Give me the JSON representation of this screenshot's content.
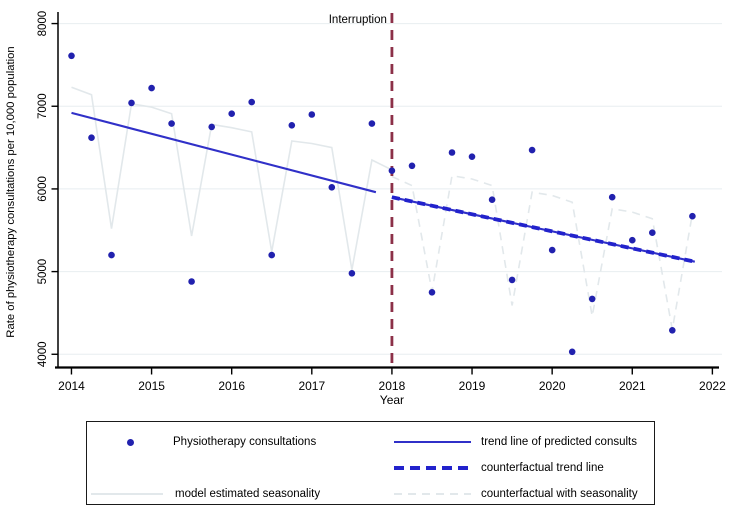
{
  "figure": {
    "ylabel": "Rate of physiotherapy consultations per 10,000 population",
    "xlabel": "Year",
    "interruption_label": "Interruption"
  },
  "colors": {
    "dot_blue": "#2121ae",
    "trend_blue": "#3030c8",
    "counterfactual_blue": "#2222cc",
    "seasonality_gray": "#e2e8eb",
    "interruption_maroon": "#8c3048",
    "gridline": "#e8eef0",
    "axis": "#000000",
    "text": "#000000"
  },
  "legend": {
    "items": [
      {
        "label": "Physiotherapy consultations",
        "swatch": "blue-dot"
      },
      {
        "label": "trend line of predicted consults",
        "swatch": "solid-blue-line"
      },
      {
        "label": "counterfactual trend line",
        "swatch": "thick-dashed-blue-line"
      },
      {
        "label": "model estimated seasonality",
        "swatch": "light-gray-line"
      },
      {
        "label": "counterfactual with seasonality",
        "swatch": "light-gray-dashed-line"
      }
    ]
  },
  "chart_data": {
    "type": "scatter",
    "title": "",
    "xlabel": "Year",
    "ylabel": "Rate of physiotherapy consultations per 10,000 population",
    "x_ticks": [
      2014,
      2015,
      2016,
      2017,
      2018,
      2019,
      2020,
      2021,
      2022
    ],
    "y_ticks": [
      4000,
      5000,
      6000,
      7000,
      8000
    ],
    "xlim": [
      2013.832,
      2022.12
    ],
    "ylim": [
      3840,
      8140
    ],
    "grid": "horizontal",
    "legend_position": "bottom",
    "interruption_x": 2018,
    "scatter_points": [
      [
        2014.0,
        7610
      ],
      [
        2014.25,
        6620
      ],
      [
        2014.5,
        5200
      ],
      [
        2014.75,
        7040
      ],
      [
        2015.0,
        7220
      ],
      [
        2015.25,
        6790
      ],
      [
        2015.5,
        4880
      ],
      [
        2015.75,
        6750
      ],
      [
        2016.0,
        6910
      ],
      [
        2016.25,
        7050
      ],
      [
        2016.5,
        5200
      ],
      [
        2016.75,
        6770
      ],
      [
        2017.0,
        6900
      ],
      [
        2017.25,
        6020
      ],
      [
        2017.5,
        4980
      ],
      [
        2017.75,
        6790
      ],
      [
        2018.0,
        6220
      ],
      [
        2018.25,
        6280
      ],
      [
        2018.5,
        4750
      ],
      [
        2018.75,
        6440
      ],
      [
        2019.0,
        6390
      ],
      [
        2019.25,
        5870
      ],
      [
        2019.5,
        4900
      ],
      [
        2019.75,
        6470
      ],
      [
        2020.0,
        5260
      ],
      [
        2020.25,
        4030
      ],
      [
        2020.5,
        4670
      ],
      [
        2020.75,
        5900
      ],
      [
        2021.0,
        5380
      ],
      [
        2021.25,
        5470
      ],
      [
        2021.5,
        4290
      ],
      [
        2021.75,
        5670
      ]
    ],
    "trend_pre": [
      [
        2014.0,
        6920
      ],
      [
        2017.8,
        5960
      ]
    ],
    "trend_post": [
      [
        2018.0,
        5900
      ],
      [
        2021.78,
        5120
      ]
    ],
    "counterfactual_trend": [
      [
        2018.0,
        5900
      ],
      [
        2021.78,
        5120
      ]
    ],
    "seasonality_pre": [
      [
        2014.0,
        7230
      ],
      [
        2014.25,
        7140
      ],
      [
        2014.5,
        5520
      ],
      [
        2014.75,
        7030
      ],
      [
        2015.0,
        6990
      ],
      [
        2015.25,
        6910
      ],
      [
        2015.5,
        5430
      ],
      [
        2015.75,
        6780
      ],
      [
        2016.0,
        6740
      ],
      [
        2016.25,
        6690
      ],
      [
        2016.5,
        5240
      ],
      [
        2016.75,
        6580
      ],
      [
        2017.0,
        6550
      ],
      [
        2017.25,
        6500
      ],
      [
        2017.5,
        5020
      ],
      [
        2017.75,
        6350
      ],
      [
        2018.0,
        6230
      ]
    ],
    "seasonality_post": [
      [
        2018.0,
        6150
      ],
      [
        2018.25,
        6040
      ],
      [
        2018.5,
        4760
      ],
      [
        2018.75,
        6160
      ],
      [
        2019.0,
        6120
      ],
      [
        2019.25,
        6040
      ],
      [
        2019.5,
        4590
      ],
      [
        2019.75,
        5960
      ],
      [
        2020.0,
        5920
      ],
      [
        2020.25,
        5840
      ],
      [
        2020.5,
        4460
      ],
      [
        2020.75,
        5760
      ],
      [
        2021.0,
        5720
      ],
      [
        2021.25,
        5640
      ],
      [
        2021.5,
        4300
      ],
      [
        2021.75,
        5700
      ]
    ]
  }
}
